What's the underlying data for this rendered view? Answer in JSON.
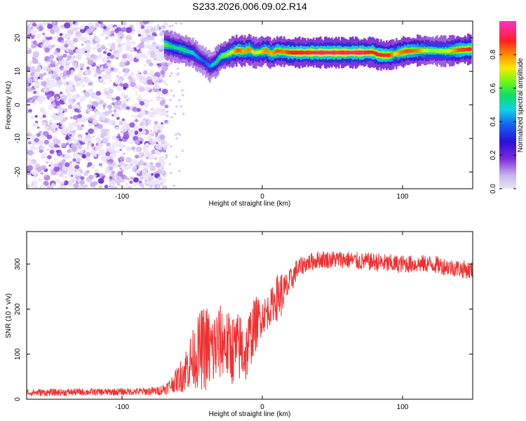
{
  "figure_title": "S233.2026.006.09.02.R14",
  "chart_data": [
    {
      "type": "heatmap",
      "xlabel": "Height of straight line (km)",
      "ylabel": "Frequency (Hz)",
      "xlim": [
        -168,
        150
      ],
      "ylim": [
        -25,
        25
      ],
      "x_ticks": [
        -100,
        0,
        100
      ],
      "y_ticks": [
        -20,
        -10,
        0,
        10,
        20
      ],
      "grid": false,
      "colorbar": {
        "label": "Normalized spectral amplitude",
        "range": [
          0,
          1
        ],
        "ticks": [
          "0.0",
          "0.2",
          "0.4",
          "0.6",
          "0.8"
        ],
        "colors": [
          "#dcd0f0",
          "#8a3ad8",
          "#3b1ad0",
          "#1650f0",
          "#10c8e8",
          "#10e060",
          "#7cff10",
          "#f8e800",
          "#ff7a00",
          "#ff2020",
          "#ff30d0"
        ]
      },
      "noise_region": {
        "x_range": [
          -168,
          -68
        ],
        "freq_range": [
          -25,
          25
        ]
      },
      "ridge": {
        "x": [
          -70,
          -66,
          -62,
          -58,
          -54,
          -50,
          -46,
          -42,
          -38,
          -34,
          -30,
          -26,
          -22,
          -18,
          -14,
          -10,
          -6,
          -2,
          2,
          6,
          10,
          14,
          20,
          30,
          40,
          50,
          60,
          70,
          78,
          82,
          86,
          90,
          94,
          98,
          102,
          110,
          120,
          130,
          140,
          148
        ],
        "freq": [
          18,
          17.5,
          17,
          16.6,
          16,
          15.5,
          14,
          13,
          11.5,
          12.5,
          14.5,
          15,
          15.8,
          16.3,
          16,
          16.5,
          15.5,
          15.8,
          16.3,
          15.2,
          16.1,
          15.9,
          15.6,
          15.6,
          15.6,
          15.6,
          15.6,
          15.6,
          15.7,
          15.0,
          14.8,
          14.8,
          15.2,
          15.6,
          16.0,
          16.2,
          16.2,
          16.0,
          16.4,
          16.6
        ],
        "amplitude": [
          0.55,
          0.5,
          0.45,
          0.5,
          0.45,
          0.4,
          0.35,
          0.3,
          0.35,
          0.45,
          0.55,
          0.6,
          0.7,
          0.85,
          0.75,
          0.8,
          0.65,
          0.7,
          0.8,
          0.75,
          0.85,
          0.8,
          0.9,
          0.92,
          0.95,
          0.95,
          0.95,
          0.95,
          0.9,
          0.9,
          0.88,
          0.88,
          0.7,
          0.8,
          0.85,
          0.8,
          0.6,
          0.65,
          0.85,
          0.9
        ]
      }
    },
    {
      "type": "line",
      "xlabel": "Height of straight line (km)",
      "ylabel": "SNR (10 * v/v)",
      "xlim": [
        -168,
        150
      ],
      "ylim": [
        0,
        372
      ],
      "x_ticks": [
        -100,
        0,
        100
      ],
      "y_ticks": [
        0,
        100,
        200,
        300
      ],
      "grid": false,
      "series": [
        {
          "color": "#f03030",
          "x": [
            -168,
            -150,
            -130,
            -110,
            -90,
            -75,
            -68,
            -64,
            -60,
            -56,
            -52,
            -48,
            -44,
            -40,
            -36,
            -32,
            -28,
            -24,
            -20,
            -16,
            -12,
            -8,
            -4,
            0,
            4,
            8,
            12,
            16,
            20,
            24,
            30,
            40,
            50,
            60,
            70,
            80,
            90,
            100,
            110,
            120,
            130,
            140,
            150
          ],
          "mean": [
            15,
            15,
            16,
            16,
            17,
            18,
            25,
            35,
            45,
            60,
            80,
            95,
            110,
            115,
            105,
            120,
            130,
            115,
            110,
            115,
            100,
            145,
            170,
            185,
            195,
            215,
            230,
            240,
            260,
            285,
            300,
            310,
            310,
            310,
            305,
            305,
            300,
            300,
            300,
            300,
            295,
            290,
            285
          ],
          "spread": [
            8,
            8,
            8,
            8,
            8,
            10,
            14,
            20,
            30,
            45,
            60,
            70,
            90,
            100,
            90,
            90,
            80,
            80,
            80,
            80,
            70,
            70,
            60,
            40,
            40,
            40,
            60,
            40,
            30,
            25,
            20,
            20,
            20,
            20,
            20,
            20,
            22,
            20,
            20,
            20,
            20,
            20,
            20
          ]
        }
      ]
    }
  ]
}
